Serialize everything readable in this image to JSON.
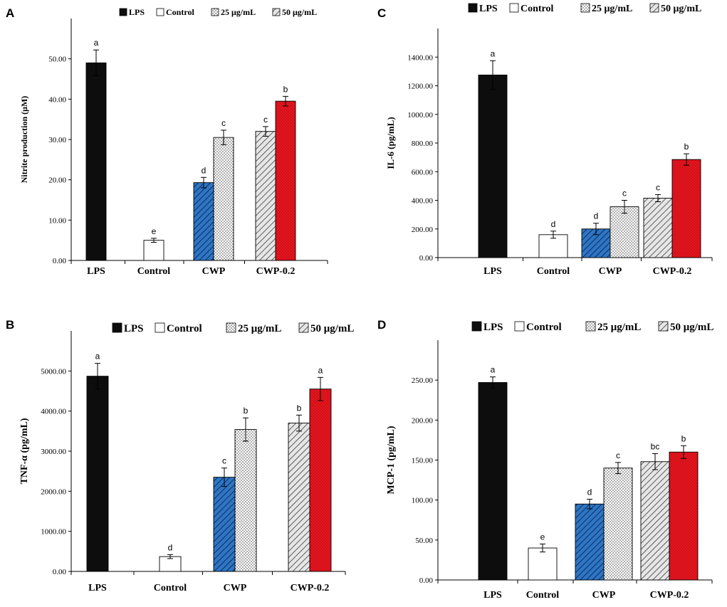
{
  "figure": {
    "legend": [
      "LPS",
      "Control",
      "25 μg/mL",
      "50 μg/mL"
    ]
  },
  "colors": {
    "lps": "#0d0d0d",
    "control": "#ffffff",
    "cwp_25": "#2e75c4",
    "cwp_50": "#f4f4f4",
    "cwp02_25": "#e6e6e6",
    "cwp02_50": "#e8141e"
  },
  "chart_data": [
    {
      "panel": "A",
      "type": "bar",
      "ylabel": "Nitrite production  (μM)",
      "ylim": [
        0,
        60
      ],
      "yticks": [
        0,
        10,
        20,
        30,
        40,
        50
      ],
      "ytick_labels": [
        "0.00",
        "10.00",
        "20.00",
        "30.00",
        "40.00",
        "50.00"
      ],
      "categories": [
        "LPS",
        "Control",
        "CWP",
        "CWP-0.2"
      ],
      "bars": [
        {
          "group": "LPS",
          "value": 49.0,
          "error": 3.2,
          "sig": "a",
          "style": "lps"
        },
        {
          "group": "Control",
          "value": 5.0,
          "error": 0.5,
          "sig": "e",
          "style": "control"
        },
        {
          "group": "CWP",
          "value": 19.3,
          "error": 1.3,
          "sig": "d",
          "style": "cwp_25"
        },
        {
          "group": "CWP",
          "value": 30.5,
          "error": 1.8,
          "sig": "c",
          "style": "cwp_50"
        },
        {
          "group": "CWP-0.2",
          "value": 32.0,
          "error": 1.2,
          "sig": "c",
          "style": "cwp02_25"
        },
        {
          "group": "CWP-0.2",
          "value": 39.5,
          "error": 1.2,
          "sig": "b",
          "style": "cwp02_50"
        }
      ]
    },
    {
      "panel": "C",
      "type": "bar",
      "ylabel": "IL-6 (pg/mL)",
      "ylim": [
        0,
        1600
      ],
      "yticks": [
        0,
        200,
        400,
        600,
        800,
        1000,
        1200,
        1400
      ],
      "ytick_labels": [
        "0.00",
        "200.00",
        "400.00",
        "600.00",
        "800.00",
        "1000.00",
        "1200.00",
        "1400.00"
      ],
      "categories": [
        "LPS",
        "Control",
        "CWP",
        "CWP-0.2"
      ],
      "bars": [
        {
          "group": "LPS",
          "value": 1275,
          "error": 100,
          "sig": "a",
          "style": "lps"
        },
        {
          "group": "Control",
          "value": 160,
          "error": 25,
          "sig": "d",
          "style": "control"
        },
        {
          "group": "CWP",
          "value": 200,
          "error": 40,
          "sig": "d",
          "style": "cwp_25"
        },
        {
          "group": "CWP",
          "value": 355,
          "error": 45,
          "sig": "c",
          "style": "cwp_50"
        },
        {
          "group": "CWP-0.2",
          "value": 415,
          "error": 25,
          "sig": "c",
          "style": "cwp02_25"
        },
        {
          "group": "CWP-0.2",
          "value": 685,
          "error": 40,
          "sig": "b",
          "style": "cwp02_50"
        }
      ]
    },
    {
      "panel": "B",
      "type": "bar",
      "ylabel": "TNF-α  (pg/mL)",
      "ylim": [
        0,
        6000
      ],
      "yticks": [
        0,
        1000,
        2000,
        3000,
        4000,
        5000
      ],
      "ytick_labels": [
        "0.00",
        "1000.00",
        "2000.00",
        "3000.00",
        "4000.00",
        "5000.00"
      ],
      "categories": [
        "LPS",
        "Control",
        "CWP",
        "CWP-0.2"
      ],
      "bars": [
        {
          "group": "LPS",
          "value": 4870,
          "error": 320,
          "sig": "a",
          "style": "lps"
        },
        {
          "group": "Control",
          "value": 370,
          "error": 50,
          "sig": "d",
          "style": "control"
        },
        {
          "group": "CWP",
          "value": 2350,
          "error": 230,
          "sig": "c",
          "style": "cwp_25"
        },
        {
          "group": "CWP",
          "value": 3540,
          "error": 290,
          "sig": "b",
          "style": "cwp_50"
        },
        {
          "group": "CWP-0.2",
          "value": 3700,
          "error": 200,
          "sig": "b",
          "style": "cwp02_25"
        },
        {
          "group": "CWP-0.2",
          "value": 4550,
          "error": 290,
          "sig": "a",
          "style": "cwp02_50"
        }
      ]
    },
    {
      "panel": "D",
      "type": "bar",
      "ylabel": "MCP-1  (pg/mL)",
      "ylim": [
        0,
        300
      ],
      "yticks": [
        0,
        50,
        100,
        150,
        200,
        250
      ],
      "ytick_labels": [
        "0.00",
        "50.00",
        "100.00",
        "150.00",
        "200.00",
        "250.00"
      ],
      "categories": [
        "LPS",
        "Control",
        "CWP",
        "CWP-0.2"
      ],
      "bars": [
        {
          "group": "LPS",
          "value": 247,
          "error": 7,
          "sig": "a",
          "style": "lps"
        },
        {
          "group": "Control",
          "value": 40,
          "error": 5,
          "sig": "e",
          "style": "control"
        },
        {
          "group": "CWP",
          "value": 95,
          "error": 6,
          "sig": "d",
          "style": "cwp_25"
        },
        {
          "group": "CWP",
          "value": 140,
          "error": 7,
          "sig": "c",
          "style": "cwp_50"
        },
        {
          "group": "CWP-0.2",
          "value": 148,
          "error": 10,
          "sig": "bc",
          "style": "cwp02_25"
        },
        {
          "group": "CWP-0.2",
          "value": 160,
          "error": 8,
          "sig": "b",
          "style": "cwp02_50"
        }
      ]
    }
  ]
}
